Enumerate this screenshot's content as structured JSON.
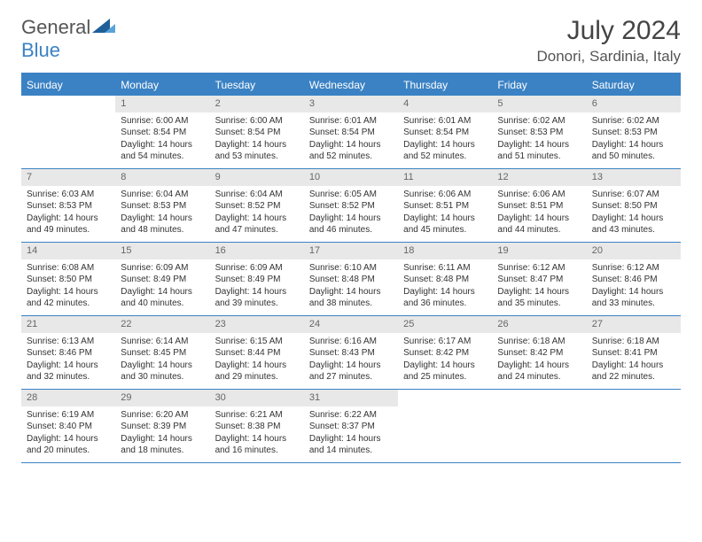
{
  "brand": {
    "general": "General",
    "blue": "Blue"
  },
  "title": "July 2024",
  "location": "Donori, Sardinia, Italy",
  "colors": {
    "accent": "#3b82c4",
    "header_bg": "#3b82c4",
    "header_text": "#ffffff",
    "daynum_bg": "#e8e8e8",
    "text": "#333333",
    "background": "#ffffff"
  },
  "day_names": [
    "Sunday",
    "Monday",
    "Tuesday",
    "Wednesday",
    "Thursday",
    "Friday",
    "Saturday"
  ],
  "weeks": [
    [
      {
        "num": "",
        "sunrise": "",
        "sunset": "",
        "daylight": ""
      },
      {
        "num": "1",
        "sunrise": "Sunrise: 6:00 AM",
        "sunset": "Sunset: 8:54 PM",
        "daylight": "Daylight: 14 hours and 54 minutes."
      },
      {
        "num": "2",
        "sunrise": "Sunrise: 6:00 AM",
        "sunset": "Sunset: 8:54 PM",
        "daylight": "Daylight: 14 hours and 53 minutes."
      },
      {
        "num": "3",
        "sunrise": "Sunrise: 6:01 AM",
        "sunset": "Sunset: 8:54 PM",
        "daylight": "Daylight: 14 hours and 52 minutes."
      },
      {
        "num": "4",
        "sunrise": "Sunrise: 6:01 AM",
        "sunset": "Sunset: 8:54 PM",
        "daylight": "Daylight: 14 hours and 52 minutes."
      },
      {
        "num": "5",
        "sunrise": "Sunrise: 6:02 AM",
        "sunset": "Sunset: 8:53 PM",
        "daylight": "Daylight: 14 hours and 51 minutes."
      },
      {
        "num": "6",
        "sunrise": "Sunrise: 6:02 AM",
        "sunset": "Sunset: 8:53 PM",
        "daylight": "Daylight: 14 hours and 50 minutes."
      }
    ],
    [
      {
        "num": "7",
        "sunrise": "Sunrise: 6:03 AM",
        "sunset": "Sunset: 8:53 PM",
        "daylight": "Daylight: 14 hours and 49 minutes."
      },
      {
        "num": "8",
        "sunrise": "Sunrise: 6:04 AM",
        "sunset": "Sunset: 8:53 PM",
        "daylight": "Daylight: 14 hours and 48 minutes."
      },
      {
        "num": "9",
        "sunrise": "Sunrise: 6:04 AM",
        "sunset": "Sunset: 8:52 PM",
        "daylight": "Daylight: 14 hours and 47 minutes."
      },
      {
        "num": "10",
        "sunrise": "Sunrise: 6:05 AM",
        "sunset": "Sunset: 8:52 PM",
        "daylight": "Daylight: 14 hours and 46 minutes."
      },
      {
        "num": "11",
        "sunrise": "Sunrise: 6:06 AM",
        "sunset": "Sunset: 8:51 PM",
        "daylight": "Daylight: 14 hours and 45 minutes."
      },
      {
        "num": "12",
        "sunrise": "Sunrise: 6:06 AM",
        "sunset": "Sunset: 8:51 PM",
        "daylight": "Daylight: 14 hours and 44 minutes."
      },
      {
        "num": "13",
        "sunrise": "Sunrise: 6:07 AM",
        "sunset": "Sunset: 8:50 PM",
        "daylight": "Daylight: 14 hours and 43 minutes."
      }
    ],
    [
      {
        "num": "14",
        "sunrise": "Sunrise: 6:08 AM",
        "sunset": "Sunset: 8:50 PM",
        "daylight": "Daylight: 14 hours and 42 minutes."
      },
      {
        "num": "15",
        "sunrise": "Sunrise: 6:09 AM",
        "sunset": "Sunset: 8:49 PM",
        "daylight": "Daylight: 14 hours and 40 minutes."
      },
      {
        "num": "16",
        "sunrise": "Sunrise: 6:09 AM",
        "sunset": "Sunset: 8:49 PM",
        "daylight": "Daylight: 14 hours and 39 minutes."
      },
      {
        "num": "17",
        "sunrise": "Sunrise: 6:10 AM",
        "sunset": "Sunset: 8:48 PM",
        "daylight": "Daylight: 14 hours and 38 minutes."
      },
      {
        "num": "18",
        "sunrise": "Sunrise: 6:11 AM",
        "sunset": "Sunset: 8:48 PM",
        "daylight": "Daylight: 14 hours and 36 minutes."
      },
      {
        "num": "19",
        "sunrise": "Sunrise: 6:12 AM",
        "sunset": "Sunset: 8:47 PM",
        "daylight": "Daylight: 14 hours and 35 minutes."
      },
      {
        "num": "20",
        "sunrise": "Sunrise: 6:12 AM",
        "sunset": "Sunset: 8:46 PM",
        "daylight": "Daylight: 14 hours and 33 minutes."
      }
    ],
    [
      {
        "num": "21",
        "sunrise": "Sunrise: 6:13 AM",
        "sunset": "Sunset: 8:46 PM",
        "daylight": "Daylight: 14 hours and 32 minutes."
      },
      {
        "num": "22",
        "sunrise": "Sunrise: 6:14 AM",
        "sunset": "Sunset: 8:45 PM",
        "daylight": "Daylight: 14 hours and 30 minutes."
      },
      {
        "num": "23",
        "sunrise": "Sunrise: 6:15 AM",
        "sunset": "Sunset: 8:44 PM",
        "daylight": "Daylight: 14 hours and 29 minutes."
      },
      {
        "num": "24",
        "sunrise": "Sunrise: 6:16 AM",
        "sunset": "Sunset: 8:43 PM",
        "daylight": "Daylight: 14 hours and 27 minutes."
      },
      {
        "num": "25",
        "sunrise": "Sunrise: 6:17 AM",
        "sunset": "Sunset: 8:42 PM",
        "daylight": "Daylight: 14 hours and 25 minutes."
      },
      {
        "num": "26",
        "sunrise": "Sunrise: 6:18 AM",
        "sunset": "Sunset: 8:42 PM",
        "daylight": "Daylight: 14 hours and 24 minutes."
      },
      {
        "num": "27",
        "sunrise": "Sunrise: 6:18 AM",
        "sunset": "Sunset: 8:41 PM",
        "daylight": "Daylight: 14 hours and 22 minutes."
      }
    ],
    [
      {
        "num": "28",
        "sunrise": "Sunrise: 6:19 AM",
        "sunset": "Sunset: 8:40 PM",
        "daylight": "Daylight: 14 hours and 20 minutes."
      },
      {
        "num": "29",
        "sunrise": "Sunrise: 6:20 AM",
        "sunset": "Sunset: 8:39 PM",
        "daylight": "Daylight: 14 hours and 18 minutes."
      },
      {
        "num": "30",
        "sunrise": "Sunrise: 6:21 AM",
        "sunset": "Sunset: 8:38 PM",
        "daylight": "Daylight: 14 hours and 16 minutes."
      },
      {
        "num": "31",
        "sunrise": "Sunrise: 6:22 AM",
        "sunset": "Sunset: 8:37 PM",
        "daylight": "Daylight: 14 hours and 14 minutes."
      },
      {
        "num": "",
        "sunrise": "",
        "sunset": "",
        "daylight": ""
      },
      {
        "num": "",
        "sunrise": "",
        "sunset": "",
        "daylight": ""
      },
      {
        "num": "",
        "sunrise": "",
        "sunset": "",
        "daylight": ""
      }
    ]
  ]
}
